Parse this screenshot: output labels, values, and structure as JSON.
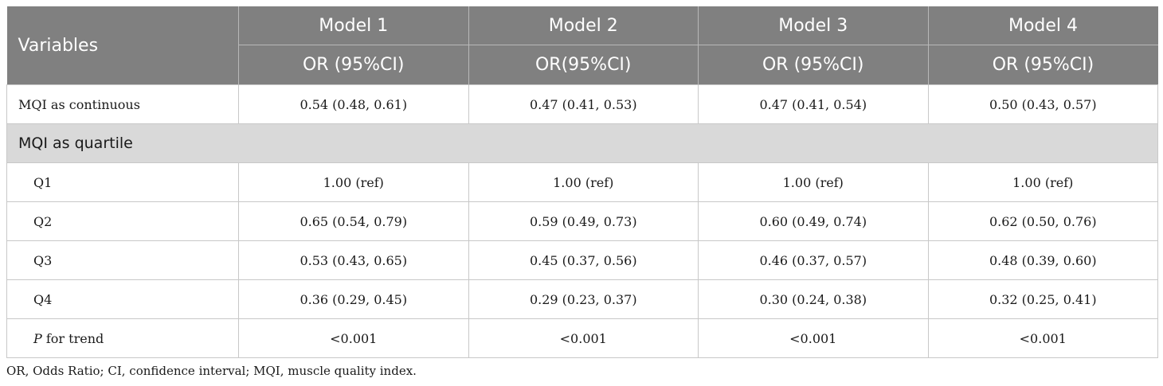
{
  "table": {
    "header": {
      "variables": "Variables",
      "models": [
        "Model 1",
        "Model 2",
        "Model 3",
        "Model 4"
      ],
      "or_labels": [
        "OR (95%CI)",
        "OR(95%CI)",
        "OR (95%CI)",
        "OR (95%CI)"
      ]
    },
    "rows": {
      "continuous": {
        "label": "MQI as continuous",
        "values": [
          "0.54 (0.48, 0.61)",
          "0.47 (0.41, 0.53)",
          "0.47 (0.41, 0.54)",
          "0.50 (0.43, 0.57)"
        ]
      },
      "section_label": "MQI as quartile",
      "q1": {
        "label": "Q1",
        "values": [
          "1.00 (ref)",
          "1.00 (ref)",
          "1.00 (ref)",
          "1.00 (ref)"
        ]
      },
      "q2": {
        "label": "Q2",
        "values": [
          "0.65 (0.54, 0.79)",
          "0.59 (0.49, 0.73)",
          "0.60 (0.49, 0.74)",
          "0.62 (0.50, 0.76)"
        ]
      },
      "q3": {
        "label": "Q3",
        "values": [
          "0.53 (0.43, 0.65)",
          "0.45 (0.37, 0.56)",
          "0.46 (0.37, 0.57)",
          "0.48 (0.39, 0.60)"
        ]
      },
      "q4": {
        "label": "Q4",
        "values": [
          "0.36 (0.29, 0.45)",
          "0.29 (0.23, 0.37)",
          "0.30 (0.24, 0.38)",
          "0.32 (0.25, 0.41)"
        ]
      },
      "trend": {
        "label_p": "P",
        "label_rest": " for trend",
        "values": [
          "<0.001",
          "<0.001",
          "<0.001",
          "<0.001"
        ]
      }
    }
  },
  "footnote": "OR, Odds Ratio; CI, confidence interval; MQI, muscle quality index.",
  "colors": {
    "header_bg": "#808080",
    "section_bg": "#d9d9d9",
    "border": "#c8c8c8"
  }
}
